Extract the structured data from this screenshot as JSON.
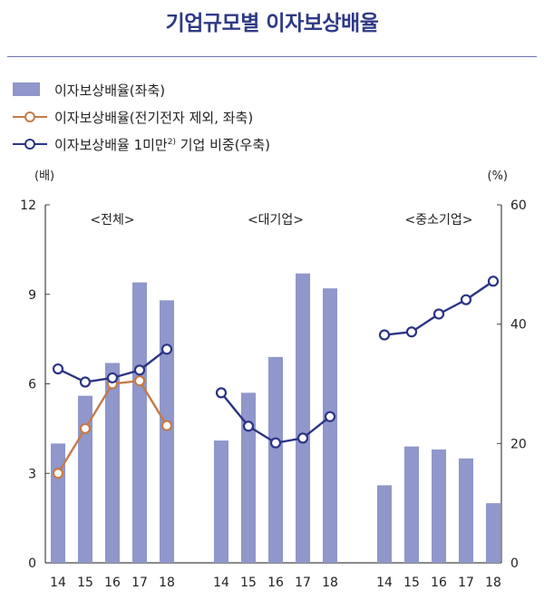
{
  "title": "기업규모별 이자보상배율",
  "legend": [
    {
      "label": "이자보상배율(좌축)",
      "kind": "bar",
      "color": "#8f97cb"
    },
    {
      "label": "이자보상배율(전기전자 제외, 좌축)",
      "kind": "line",
      "color": "#c47b4a"
    },
    {
      "label": "이자보상배율 1미만",
      "sup": "2)",
      "suffix": " 기업 비중(우축)",
      "kind": "line",
      "color": "#2b3484"
    }
  ],
  "chart_data": {
    "type": "bar",
    "left_axis": {
      "unit": "(배)",
      "ticks": [
        0,
        3,
        6,
        9,
        12
      ],
      "ylim": [
        0,
        12
      ]
    },
    "right_axis": {
      "unit": "(%)",
      "ticks": [
        0,
        20,
        40,
        60
      ],
      "ylim": [
        0,
        60
      ]
    },
    "grid": false,
    "panels": [
      {
        "label": "<전체>",
        "categories": [
          "14",
          "15",
          "16",
          "17",
          "18"
        ],
        "bars": [
          4.0,
          5.6,
          6.7,
          9.4,
          8.8
        ],
        "excl_line": [
          3.0,
          4.5,
          6.0,
          6.1,
          4.6
        ],
        "share_line": [
          32.5,
          30.3,
          31.0,
          32.3,
          35.8
        ]
      },
      {
        "label": "<대기업>",
        "categories": [
          "14",
          "15",
          "16",
          "17",
          "18"
        ],
        "bars": [
          4.1,
          5.7,
          6.9,
          9.7,
          9.2
        ],
        "excl_line": null,
        "share_line": [
          28.5,
          22.9,
          20.1,
          20.9,
          24.5
        ]
      },
      {
        "label": "<중소기업>",
        "categories": [
          "14",
          "15",
          "16",
          "17",
          "18"
        ],
        "bars": [
          2.6,
          3.9,
          3.8,
          3.5,
          2.0
        ],
        "excl_line": null,
        "share_line": [
          38.2,
          38.7,
          41.7,
          44.1,
          47.2
        ]
      }
    ]
  },
  "colors": {
    "bar": "#8f97cb",
    "excl": "#c47b4a",
    "share": "#2b3484",
    "axis": "#444444"
  }
}
